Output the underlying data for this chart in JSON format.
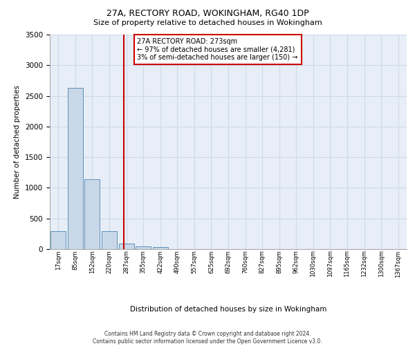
{
  "title_line1": "27A, RECTORY ROAD, WOKINGHAM, RG40 1DP",
  "title_line2": "Size of property relative to detached houses in Wokingham",
  "xlabel": "Distribution of detached houses by size in Wokingham",
  "ylabel": "Number of detached properties",
  "bar_labels": [
    "17sqm",
    "85sqm",
    "152sqm",
    "220sqm",
    "287sqm",
    "355sqm",
    "422sqm",
    "490sqm",
    "557sqm",
    "625sqm",
    "692sqm",
    "760sqm",
    "827sqm",
    "895sqm",
    "962sqm",
    "1030sqm",
    "1097sqm",
    "1165sqm",
    "1232sqm",
    "1300sqm",
    "1367sqm"
  ],
  "bar_values": [
    290,
    2630,
    1140,
    295,
    85,
    45,
    30,
    0,
    0,
    0,
    0,
    0,
    0,
    0,
    0,
    0,
    0,
    0,
    0,
    0,
    0
  ],
  "bar_color": "#c8d8e8",
  "bar_edge_color": "#6090b8",
  "property_line_x": 3.85,
  "property_line_color": "#cc0000",
  "ylim": [
    0,
    3500
  ],
  "yticks": [
    0,
    500,
    1000,
    1500,
    2000,
    2500,
    3000,
    3500
  ],
  "annotation_text": "27A RECTORY ROAD: 273sqm\n← 97% of detached houses are smaller (4,281)\n3% of semi-detached houses are larger (150) →",
  "annotation_box_color": "#ffffff",
  "annotation_box_edge": "#cc0000",
  "grid_color": "#d0d8e8",
  "bg_color": "#e8eef8",
  "footer_line1": "Contains HM Land Registry data © Crown copyright and database right 2024.",
  "footer_line2": "Contains public sector information licensed under the Open Government Licence v3.0."
}
